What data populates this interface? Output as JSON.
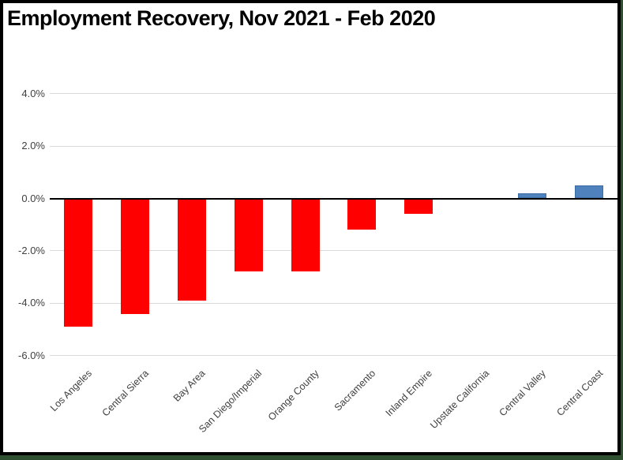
{
  "window": {
    "kind": "chart-screenshot"
  },
  "chart_data": {
    "type": "bar",
    "title": "Employment Recovery, Nov 2021 - Feb 2020",
    "xlabel": "",
    "ylabel": "",
    "unit": "%",
    "categories": [
      "Los Angeles",
      "Central Sierra",
      "Bay Area",
      "San Diego/Imperial",
      "Orange County",
      "Sacramento",
      "Inland Empire",
      "Upstate California",
      "Central Valley",
      "Central Coast"
    ],
    "values": [
      -4.9,
      -4.4,
      -3.9,
      -2.8,
      -2.8,
      -1.2,
      -0.6,
      0.0,
      0.2,
      0.5
    ],
    "y_ticks": [
      "4.0%",
      "2.0%",
      "0.0%",
      "-2.0%",
      "-4.0%",
      "-6.0%"
    ],
    "y_tick_values": [
      4,
      2,
      0,
      -2,
      -4,
      -6
    ],
    "ylim": [
      -6.5,
      5.5
    ],
    "grid": true,
    "legend": false,
    "x_labels_rotation_deg": 45
  },
  "colors": {
    "negative_bar": "#FF0000",
    "positive_bar": "#4F81BD",
    "positive_bar_border": "#3C6BA5",
    "gridline": "#D9D9D9",
    "zero_axis": "#000000",
    "frame_border": "#000000",
    "edge_strip": "#2F5132",
    "tick_text": "#404040",
    "title_text": "#000000"
  }
}
